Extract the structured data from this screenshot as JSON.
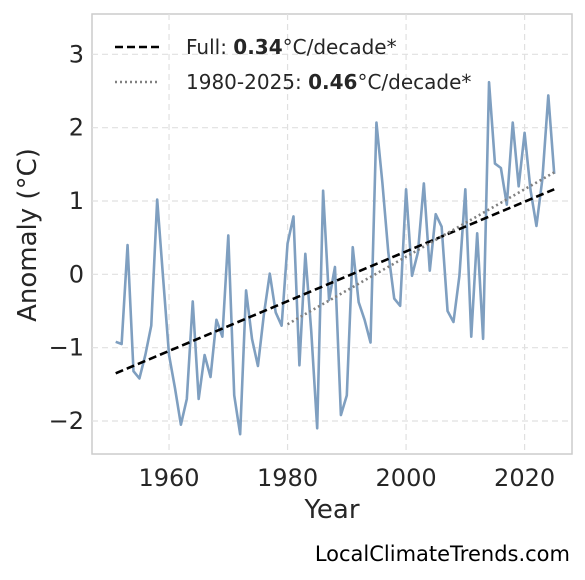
{
  "chart_data": {
    "type": "line",
    "xlabel": "Year",
    "ylabel": "Anomaly (°C)",
    "xlim": [
      1947,
      2028
    ],
    "ylim": [
      -2.45,
      3.55
    ],
    "x_ticks": [
      1960,
      1980,
      2000,
      2020
    ],
    "y_ticks": [
      -2,
      -1,
      0,
      1,
      2,
      3
    ],
    "y_tick_labels": [
      "−2",
      "−1",
      "0",
      "1",
      "2",
      "3"
    ],
    "grid": true,
    "legend_position": "top-left",
    "legend": [
      {
        "prefix": "Full: ",
        "value": "0.34",
        "suffix": "°C/decade*",
        "style": "dashed",
        "color": "#000000"
      },
      {
        "prefix": "1980-2025: ",
        "value": "0.46",
        "suffix": "°C/decade*",
        "style": "dotted",
        "color": "#808080"
      }
    ],
    "series": [
      {
        "style": "solid",
        "color": "#7f9fc0",
        "x": [
          1951,
          1952,
          1953,
          1954,
          1955,
          1956,
          1957,
          1958,
          1959,
          1960,
          1961,
          1962,
          1963,
          1964,
          1965,
          1966,
          1967,
          1968,
          1969,
          1970,
          1971,
          1972,
          1973,
          1974,
          1975,
          1976,
          1977,
          1978,
          1979,
          1980,
          1981,
          1982,
          1983,
          1984,
          1985,
          1986,
          1987,
          1988,
          1989,
          1990,
          1991,
          1992,
          1993,
          1994,
          1995,
          1996,
          1997,
          1998,
          1999,
          2000,
          2001,
          2002,
          2003,
          2004,
          2005,
          2006,
          2007,
          2008,
          2009,
          2010,
          2011,
          2012,
          2013,
          2014,
          2015,
          2016,
          2017,
          2018,
          2019,
          2020,
          2021,
          2022,
          2023,
          2024,
          2025
        ],
        "values": [
          -0.92,
          -0.95,
          0.4,
          -1.32,
          -1.42,
          -1.1,
          -0.7,
          1.02,
          -0.05,
          -1.1,
          -1.55,
          -2.05,
          -1.7,
          -0.37,
          -1.7,
          -1.1,
          -1.4,
          -0.62,
          -0.85,
          0.53,
          -1.65,
          -2.18,
          -0.22,
          -0.88,
          -1.25,
          -0.55,
          0.01,
          -0.52,
          -0.7,
          0.42,
          0.79,
          -1.24,
          0.28,
          -0.78,
          -2.1,
          1.14,
          -0.35,
          0.1,
          -1.92,
          -1.65,
          0.37,
          -0.38,
          -0.62,
          -0.93,
          2.07,
          1.25,
          0.3,
          -0.33,
          -0.43,
          1.16,
          -0.02,
          0.3,
          1.24,
          0.05,
          0.82,
          0.65,
          -0.5,
          -0.65,
          -0.02,
          1.16,
          -0.85,
          0.56,
          -0.88,
          2.62,
          1.51,
          1.45,
          0.95,
          2.07,
          1.2,
          1.93,
          1.15,
          0.66,
          1.3,
          2.44,
          1.37
        ]
      },
      {
        "style": "dashed",
        "color": "#000000",
        "x": [
          1951,
          2025
        ],
        "values": [
          -1.35,
          1.16
        ]
      },
      {
        "style": "dotted",
        "color": "#808080",
        "x": [
          1980,
          2025
        ],
        "values": [
          -0.68,
          1.39
        ]
      }
    ]
  },
  "source": "LocalClimateTrends.com"
}
